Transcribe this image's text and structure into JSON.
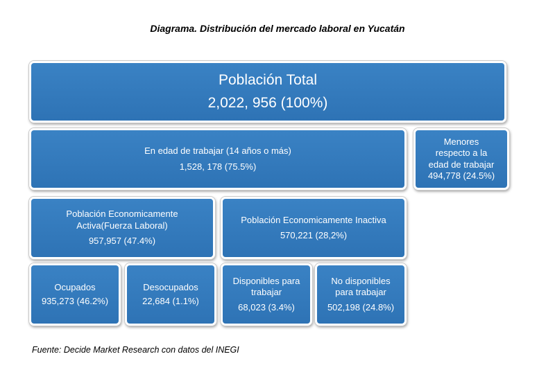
{
  "title": "Diagrama. Distribución del mercado laboral en Yucatán",
  "source": "Fuente: Decide Market Research con datos del INEGI",
  "nodes": {
    "total": {
      "label": "Población Total",
      "value": "2,022, 956 (100%)"
    },
    "edad_trabajar": {
      "label": "En edad de trabajar (14 años o más)",
      "value": "1,528, 178 (75.5%)"
    },
    "menores": {
      "label_line1": "Menores",
      "label_line2": "respecto a la",
      "label_line3": "edad de trabajar",
      "value": "494,778 (24.5%)"
    },
    "activa": {
      "label_line1": "Población Economicamente",
      "label_line2": "Activa(Fuerza Laboral)",
      "value": "957,957 (47.4%)"
    },
    "inactiva": {
      "label": "Población Economicamente  Inactiva",
      "value": "570,221 (28,2%)"
    },
    "ocupados": {
      "label": "Ocupados",
      "value": "935,273 (46.2%)"
    },
    "desocupados": {
      "label": "Desocupados",
      "value": "22,684 (1.1%)"
    },
    "disponibles": {
      "label_line1": "Disponibles para",
      "label_line2": "trabajar",
      "value": "68,023 (3.4%)"
    },
    "no_disponibles": {
      "label_line1": "No disponibles",
      "label_line2": "para trabajar",
      "value": "502,198  (24.8%)"
    }
  },
  "colors": {
    "box_fill": "#2e73b5",
    "box_border": "#ffffff",
    "text": "#ffffff"
  }
}
